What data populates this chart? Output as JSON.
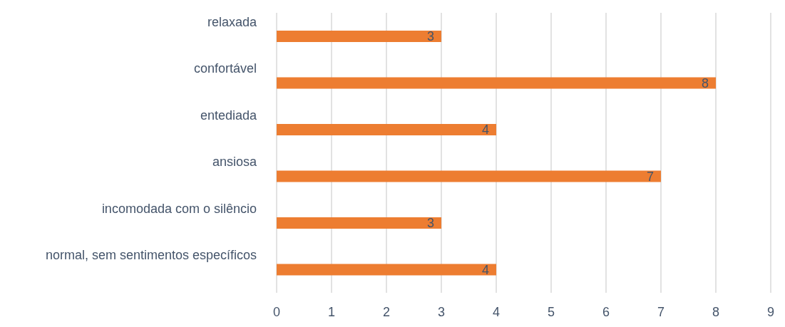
{
  "chart_data": {
    "type": "bar",
    "orientation": "horizontal",
    "categories": [
      "relaxada",
      "confortável",
      "entediada",
      "ansiosa",
      "incomodada com o silêncio",
      "normal, sem sentimentos específicos"
    ],
    "values": [
      3,
      8,
      4,
      7,
      3,
      4
    ],
    "color": "#ed7d31",
    "xlim": [
      0,
      9
    ],
    "xticks": [
      0,
      1,
      2,
      3,
      4,
      5,
      6,
      7,
      8,
      9
    ],
    "grid": "x",
    "data_labels": true
  }
}
